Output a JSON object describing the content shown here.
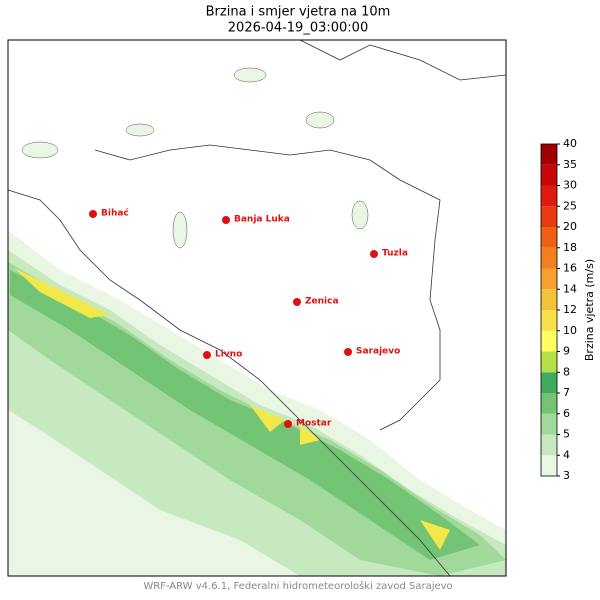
{
  "header": {
    "title": "Brzina i smjer vjetra na 10m",
    "subtitle": "2026-04-19_03:00:00"
  },
  "cities": [
    "Bihać",
    "Banja Luka",
    "Tuzla",
    "Zenica",
    "Sarajevo",
    "Livno",
    "Mostar"
  ],
  "colorbar": {
    "label": "Brzina vjetra (m/s)",
    "ticks": [
      3,
      4,
      5,
      6,
      7,
      8,
      9,
      10,
      12,
      14,
      16,
      18,
      20,
      25,
      30,
      35,
      40
    ],
    "colors": [
      "#e8f6e3",
      "#c7e9c0",
      "#a1d99b",
      "#74c476",
      "#41ab5d",
      "#b5e048",
      "#ffff60",
      "#f7e04a",
      "#f2c23a",
      "#f7a12e",
      "#f28020",
      "#ee6014",
      "#e83a10",
      "#e01a10",
      "#c80808",
      "#a00000"
    ]
  },
  "footer": "WRF-ARW v4.6.1, Federalni hidrometeorološki zavod Sarajevo"
}
